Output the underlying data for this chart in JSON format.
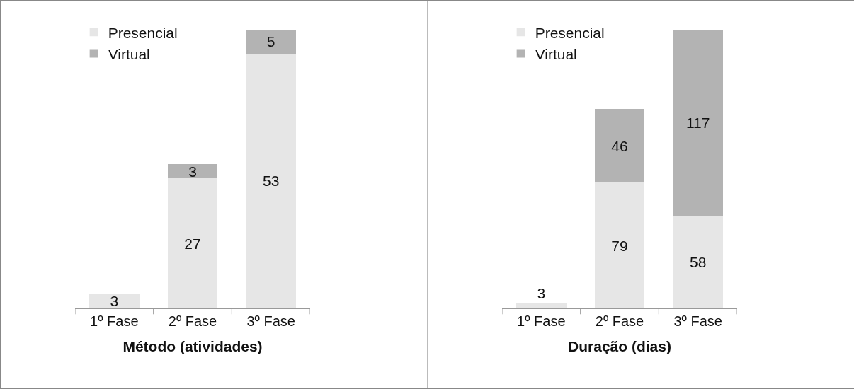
{
  "chart_data": [
    {
      "type": "bar",
      "stacked": true,
      "xlabel": "Método (atividades)",
      "categories": [
        "1º Fase",
        "2º Fase",
        "3º Fase"
      ],
      "tick_labels": "x",
      "legend": "top left",
      "data_labels": true,
      "series": [
        {
          "name": "Presencial",
          "color": "#e6e6e6",
          "values": [
            3,
            27,
            53
          ]
        },
        {
          "name": "Virtual",
          "color": "#b3b3b3",
          "values": [
            null,
            3,
            5
          ]
        }
      ]
    },
    {
      "type": "bar",
      "stacked": true,
      "xlabel": "Duração (dias)",
      "categories": [
        "1º Fase",
        "2º Fase",
        "3º Fase"
      ],
      "tick_labels": "x",
      "legend": "top left",
      "data_labels": true,
      "series": [
        {
          "name": "Presencial",
          "color": "#e6e6e6",
          "values": [
            3,
            79,
            58
          ]
        },
        {
          "name": "Virtual",
          "color": "#b3b3b3",
          "values": [
            null,
            46,
            117
          ]
        }
      ]
    }
  ]
}
